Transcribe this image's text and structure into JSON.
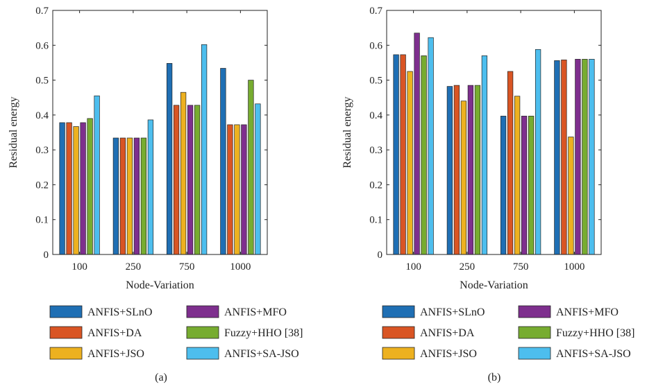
{
  "chart_data": [
    {
      "type": "bar",
      "panel_label": "(a)",
      "xlabel": "Node-Variation",
      "ylabel": "Residual energy",
      "ylim": [
        0,
        0.7
      ],
      "yticks": [
        "0",
        "0.1",
        "0.2",
        "0.3",
        "0.4",
        "0.5",
        "0.6",
        "0.7"
      ],
      "categories": [
        "100",
        "250",
        "750",
        "1000"
      ],
      "grid": false,
      "legend_position": "bottom",
      "series": [
        {
          "name": "ANFIS+SLnO",
          "color": "#1f6fb4",
          "values": [
            0.378,
            0.334,
            0.548,
            0.534
          ]
        },
        {
          "name": "ANFIS+DA",
          "color": "#d95524",
          "values": [
            0.378,
            0.334,
            0.428,
            0.372
          ]
        },
        {
          "name": "ANFIS+JSO",
          "color": "#edb120",
          "values": [
            0.367,
            0.334,
            0.465,
            0.372
          ]
        },
        {
          "name": "ANFIS+MFO",
          "color": "#7e2f8e",
          "values": [
            0.378,
            0.334,
            0.428,
            0.372
          ]
        },
        {
          "name": "Fuzzy+HHO [38]",
          "color": "#77ac30",
          "values": [
            0.39,
            0.334,
            0.428,
            0.5
          ]
        },
        {
          "name": "ANFIS+SA-JSO",
          "color": "#4dbeee",
          "values": [
            0.455,
            0.386,
            0.602,
            0.432
          ]
        }
      ]
    },
    {
      "type": "bar",
      "panel_label": "(b)",
      "xlabel": "Node-Variation",
      "ylabel": "Residual energy",
      "ylim": [
        0,
        0.7
      ],
      "yticks": [
        "0",
        "0.1",
        "0.2",
        "0.3",
        "0.4",
        "0.5",
        "0.6",
        "0.7"
      ],
      "categories": [
        "100",
        "250",
        "750",
        "1000"
      ],
      "grid": false,
      "legend_position": "bottom",
      "series": [
        {
          "name": "ANFIS+SLnO",
          "color": "#1f6fb4",
          "values": [
            0.573,
            0.482,
            0.397,
            0.556
          ]
        },
        {
          "name": "ANFIS+DA",
          "color": "#d95524",
          "values": [
            0.573,
            0.485,
            0.525,
            0.558
          ]
        },
        {
          "name": "ANFIS+JSO",
          "color": "#edb120",
          "values": [
            0.525,
            0.44,
            0.454,
            0.337
          ]
        },
        {
          "name": "ANFIS+MFO",
          "color": "#7e2f8e",
          "values": [
            0.635,
            0.485,
            0.397,
            0.56
          ]
        },
        {
          "name": "Fuzzy+HHO [38]",
          "color": "#77ac30",
          "values": [
            0.57,
            0.485,
            0.397,
            0.56
          ]
        },
        {
          "name": "ANFIS+SA-JSO",
          "color": "#4dbeee",
          "values": [
            0.622,
            0.57,
            0.588,
            0.56
          ]
        }
      ]
    }
  ]
}
